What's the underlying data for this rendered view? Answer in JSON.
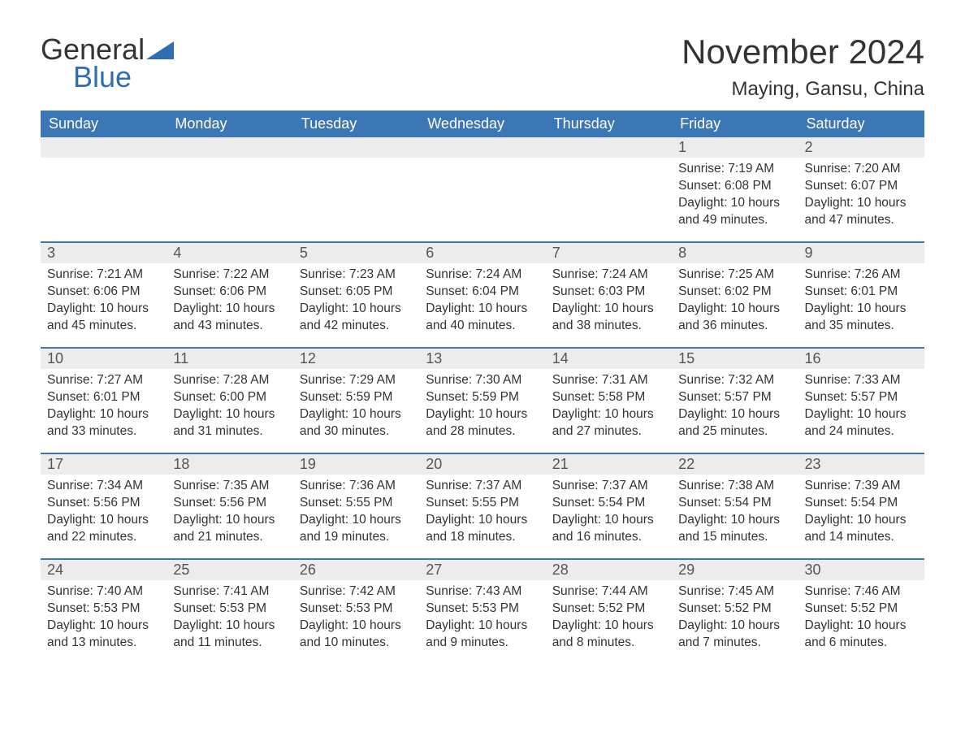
{
  "logo": {
    "text1": "General",
    "text2": "Blue",
    "accent": "#2f6fb0"
  },
  "title": "November 2024",
  "location": "Maying, Gansu, China",
  "colors": {
    "header_bg": "#3b76b5",
    "header_text": "#ffffff",
    "daynum_bg": "#ececec",
    "border": "#3b76b5",
    "text": "#333333",
    "page_bg": "#ffffff"
  },
  "fonts": {
    "title_size_pt": 42,
    "location_size_pt": 24,
    "dayhead_size_pt": 18,
    "daynum_size_pt": 18,
    "body_size_pt": 15.5
  },
  "layout": {
    "columns": 7,
    "rows": 5,
    "start_weekday": "Sunday",
    "first_day_column_index": 5
  },
  "daynames": [
    "Sunday",
    "Monday",
    "Tuesday",
    "Wednesday",
    "Thursday",
    "Friday",
    "Saturday"
  ],
  "labels": {
    "sunrise": "Sunrise:",
    "sunset": "Sunset:",
    "daylight": "Daylight:"
  },
  "days": [
    {
      "n": 1,
      "sunrise": "7:19 AM",
      "sunset": "6:08 PM",
      "daylight": "10 hours and 49 minutes."
    },
    {
      "n": 2,
      "sunrise": "7:20 AM",
      "sunset": "6:07 PM",
      "daylight": "10 hours and 47 minutes."
    },
    {
      "n": 3,
      "sunrise": "7:21 AM",
      "sunset": "6:06 PM",
      "daylight": "10 hours and 45 minutes."
    },
    {
      "n": 4,
      "sunrise": "7:22 AM",
      "sunset": "6:06 PM",
      "daylight": "10 hours and 43 minutes."
    },
    {
      "n": 5,
      "sunrise": "7:23 AM",
      "sunset": "6:05 PM",
      "daylight": "10 hours and 42 minutes."
    },
    {
      "n": 6,
      "sunrise": "7:24 AM",
      "sunset": "6:04 PM",
      "daylight": "10 hours and 40 minutes."
    },
    {
      "n": 7,
      "sunrise": "7:24 AM",
      "sunset": "6:03 PM",
      "daylight": "10 hours and 38 minutes."
    },
    {
      "n": 8,
      "sunrise": "7:25 AM",
      "sunset": "6:02 PM",
      "daylight": "10 hours and 36 minutes."
    },
    {
      "n": 9,
      "sunrise": "7:26 AM",
      "sunset": "6:01 PM",
      "daylight": "10 hours and 35 minutes."
    },
    {
      "n": 10,
      "sunrise": "7:27 AM",
      "sunset": "6:01 PM",
      "daylight": "10 hours and 33 minutes."
    },
    {
      "n": 11,
      "sunrise": "7:28 AM",
      "sunset": "6:00 PM",
      "daylight": "10 hours and 31 minutes."
    },
    {
      "n": 12,
      "sunrise": "7:29 AM",
      "sunset": "5:59 PM",
      "daylight": "10 hours and 30 minutes."
    },
    {
      "n": 13,
      "sunrise": "7:30 AM",
      "sunset": "5:59 PM",
      "daylight": "10 hours and 28 minutes."
    },
    {
      "n": 14,
      "sunrise": "7:31 AM",
      "sunset": "5:58 PM",
      "daylight": "10 hours and 27 minutes."
    },
    {
      "n": 15,
      "sunrise": "7:32 AM",
      "sunset": "5:57 PM",
      "daylight": "10 hours and 25 minutes."
    },
    {
      "n": 16,
      "sunrise": "7:33 AM",
      "sunset": "5:57 PM",
      "daylight": "10 hours and 24 minutes."
    },
    {
      "n": 17,
      "sunrise": "7:34 AM",
      "sunset": "5:56 PM",
      "daylight": "10 hours and 22 minutes."
    },
    {
      "n": 18,
      "sunrise": "7:35 AM",
      "sunset": "5:56 PM",
      "daylight": "10 hours and 21 minutes."
    },
    {
      "n": 19,
      "sunrise": "7:36 AM",
      "sunset": "5:55 PM",
      "daylight": "10 hours and 19 minutes."
    },
    {
      "n": 20,
      "sunrise": "7:37 AM",
      "sunset": "5:55 PM",
      "daylight": "10 hours and 18 minutes."
    },
    {
      "n": 21,
      "sunrise": "7:37 AM",
      "sunset": "5:54 PM",
      "daylight": "10 hours and 16 minutes."
    },
    {
      "n": 22,
      "sunrise": "7:38 AM",
      "sunset": "5:54 PM",
      "daylight": "10 hours and 15 minutes."
    },
    {
      "n": 23,
      "sunrise": "7:39 AM",
      "sunset": "5:54 PM",
      "daylight": "10 hours and 14 minutes."
    },
    {
      "n": 24,
      "sunrise": "7:40 AM",
      "sunset": "5:53 PM",
      "daylight": "10 hours and 13 minutes."
    },
    {
      "n": 25,
      "sunrise": "7:41 AM",
      "sunset": "5:53 PM",
      "daylight": "10 hours and 11 minutes."
    },
    {
      "n": 26,
      "sunrise": "7:42 AM",
      "sunset": "5:53 PM",
      "daylight": "10 hours and 10 minutes."
    },
    {
      "n": 27,
      "sunrise": "7:43 AM",
      "sunset": "5:53 PM",
      "daylight": "10 hours and 9 minutes."
    },
    {
      "n": 28,
      "sunrise": "7:44 AM",
      "sunset": "5:52 PM",
      "daylight": "10 hours and 8 minutes."
    },
    {
      "n": 29,
      "sunrise": "7:45 AM",
      "sunset": "5:52 PM",
      "daylight": "10 hours and 7 minutes."
    },
    {
      "n": 30,
      "sunrise": "7:46 AM",
      "sunset": "5:52 PM",
      "daylight": "10 hours and 6 minutes."
    }
  ]
}
